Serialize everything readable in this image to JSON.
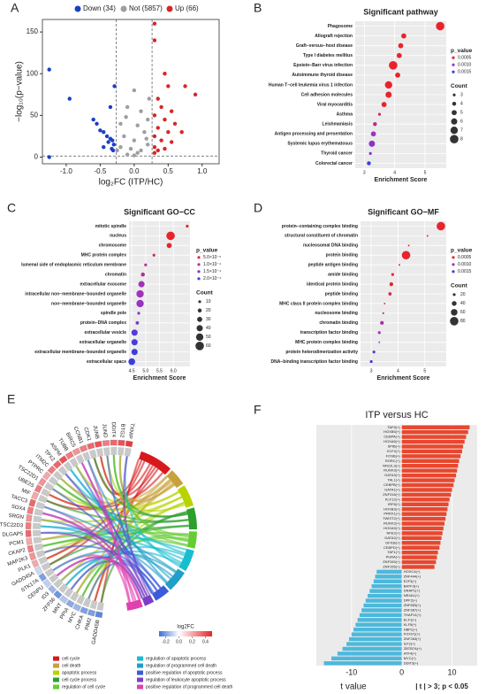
{
  "chart_data": [
    {
      "panel": "A",
      "type": "scatter",
      "xlabel": "log₂FC (ITP/HC)",
      "ylabel": "−log₁₀(p−value)",
      "xlim": [
        -1.35,
        1.25
      ],
      "ylim": [
        -8,
        165
      ],
      "xticks": [
        {
          "value": -1,
          "label": "-1.0"
        },
        {
          "value": -0.5,
          "label": "-0.5"
        },
        {
          "value": 0,
          "label": "0.0"
        },
        {
          "value": 0.5,
          "label": "0.5"
        },
        {
          "value": 1,
          "label": "1.0"
        }
      ],
      "yticks": [
        0,
        50,
        100,
        150
      ],
      "thresholds": {
        "x": [
          -0.263,
          0.263
        ],
        "y": 1.3
      },
      "series": [
        {
          "name": "Down (34)",
          "color": "#1b3fc4",
          "x": [
            -1.25,
            -0.95,
            -0.6,
            -0.55,
            -0.5,
            -0.45,
            -0.4,
            -0.35,
            -0.32,
            -0.38,
            -0.3,
            -0.45,
            -0.33,
            -0.31,
            -0.29,
            -0.35,
            -1.25
          ],
          "y": [
            105,
            70,
            45,
            40,
            32,
            30,
            25,
            22,
            20,
            18,
            15,
            12,
            10,
            8,
            85,
            60,
            0
          ]
        },
        {
          "name": "Not (5857)",
          "color": "#9e9e9e",
          "x": [
            -0.2,
            -0.1,
            0,
            0.1,
            0.2,
            -0.15,
            0.15,
            0,
            -0.05,
            0.05,
            0.2,
            -0.2,
            0.1,
            -0.1,
            0,
            0.22,
            -0.25,
            0.18,
            0.05,
            -0.12
          ],
          "y": [
            40,
            60,
            80,
            55,
            45,
            25,
            30,
            20,
            10,
            5,
            15,
            12,
            8,
            3,
            2,
            70,
            8,
            22,
            38,
            48
          ]
        },
        {
          "name": "Up (66)",
          "color": "#d62728",
          "x": [
            0.3,
            0.3,
            0.45,
            0.5,
            0.75,
            0.9,
            0.35,
            0.4,
            0.55,
            0.3,
            0.45,
            0.6,
            0.35,
            0.5,
            0.7,
            0.3,
            0.4,
            0.55,
            0.3,
            0.45,
            0.35,
            0.3
          ],
          "y": [
            160,
            140,
            100,
            85,
            85,
            75,
            70,
            60,
            55,
            50,
            45,
            40,
            35,
            30,
            30,
            25,
            20,
            18,
            12,
            10,
            8,
            5
          ]
        }
      ]
    },
    {
      "panel": "B",
      "type": "dot",
      "title": "Significant pathway",
      "xlabel": "Enrichment Score",
      "categories": [
        "Phagosome",
        "Allograft rejection",
        "Graft−versus−host disease",
        "Type I diabetes mellitus",
        "Epstein−Barr virus infection",
        "Autoimmune thyroid disease",
        "Human T−cell leukemia virus 1 infection",
        "Cell adhesion molecules",
        "Viral myocarditis",
        "Asthma",
        "Leishmaniasis",
        "Antigen processing and presentation",
        "Systemic lupus erythematosus",
        "Thyroid cancer",
        "Colorectal cancer"
      ],
      "values": [
        5.5,
        4.3,
        4.2,
        4.15,
        3.95,
        4.1,
        3.8,
        3.8,
        3.65,
        3.5,
        3.35,
        3.3,
        3.25,
        3.2,
        3.15
      ],
      "counts": [
        8,
        5,
        5,
        5,
        8,
        5,
        7,
        6,
        5,
        3,
        4,
        5,
        6,
        3,
        4
      ],
      "p_values": [
        5e-05,
        0.0002,
        0.0002,
        0.0002,
        0.0001,
        0.0003,
        0.0002,
        0.0003,
        0.0004,
        0.0006,
        0.0008,
        0.001,
        0.0011,
        0.0012,
        0.0015
      ],
      "xlim": [
        2.7,
        5.7
      ],
      "xticks": [
        3,
        4,
        5
      ],
      "color_title": "p_value",
      "color_legend": [
        {
          "value": 0.0005,
          "label": "0.0005"
        },
        {
          "value": 0.001,
          "label": "0.0010"
        },
        {
          "value": 0.0015,
          "label": "0.0015"
        }
      ],
      "size_title": "Count",
      "size_legend": [
        3,
        4,
        5,
        6,
        7,
        8
      ],
      "colors": [
        "#e8242a",
        "#9c33c4",
        "#3d3dde"
      ]
    },
    {
      "panel": "C",
      "type": "dot",
      "title": "Significant GO−CC",
      "xlabel": "Enrichment Score",
      "categories": [
        "mitotic spindle",
        "nucleus",
        "chromosome",
        "MHC protein complex",
        "lumenal side of endoplasmic reticulum membrane",
        "chromatin",
        "extracellular exosome",
        "intracellular non−membrane−bounded organelle",
        "non−membrane−bounded organelle",
        "spindle pole",
        "protein−DNA complex",
        "extracellular vesicle",
        "extracellular organelle",
        "extracellular membrane−bounded organelle",
        "extracellular space"
      ],
      "values": [
        6.5,
        5.9,
        5.85,
        5.3,
        5.0,
        4.9,
        4.85,
        4.8,
        4.8,
        4.75,
        4.7,
        4.6,
        4.6,
        4.6,
        4.5
      ],
      "counts": [
        10,
        60,
        30,
        10,
        10,
        20,
        40,
        50,
        50,
        10,
        15,
        40,
        40,
        40,
        45
      ],
      "p_values": [
        4e-05,
        3e-05,
        5e-05,
        8e-05,
        0.0001,
        0.0001,
        0.00012,
        0.00012,
        0.00013,
        0.00014,
        0.00015,
        0.00018,
        0.00019,
        0.0002,
        0.0002
      ],
      "xlim": [
        4.4,
        6.6
      ],
      "xticks": [
        4.5,
        {
          "value": 5,
          "label": "5.0"
        },
        5.5,
        {
          "value": 6,
          "label": "6.0"
        }
      ],
      "color_title": "p_value",
      "color_legend": [
        {
          "value": 5e-05,
          "label": "5.0×10⁻⁵"
        },
        {
          "value": 0.0001,
          "label": "1.0×10⁻⁴"
        },
        {
          "value": 0.00015,
          "label": "1.5×10⁻⁴"
        },
        {
          "value": 0.0002,
          "label": "2.0×10⁻⁴"
        }
      ],
      "size_title": "Count",
      "size_legend": [
        10,
        20,
        30,
        40,
        50,
        60
      ],
      "colors": [
        "#e8242a",
        "#9c33c4",
        "#3d3dde"
      ]
    },
    {
      "panel": "D",
      "type": "dot",
      "title": "Significant GO−MF",
      "xlabel": "Enrichment Score",
      "categories": [
        "protein−containing complex binding",
        "structural constituent of chromatin",
        "nucleosomal DNA binding",
        "protein binding",
        "peptide antigen binding",
        "amide binding",
        "identical protein binding",
        "peptide binding",
        "MHC class II protein complex binding",
        "nucleosome binding",
        "chromatin binding",
        "transcription factor binding",
        "MHC protein complex binding",
        "protein heterodimerization activity",
        "DNA−binding transcription factor binding"
      ],
      "values": [
        5.6,
        5.1,
        4.4,
        4.3,
        4.05,
        3.8,
        3.75,
        3.7,
        3.5,
        3.45,
        3.4,
        3.3,
        3.3,
        3.1,
        3.0
      ],
      "counts": [
        80,
        8,
        8,
        80,
        8,
        20,
        30,
        25,
        8,
        10,
        30,
        20,
        8,
        20,
        20
      ],
      "p_values": [
        0.0001,
        0.0002,
        0.0003,
        0.0002,
        0.0004,
        0.0005,
        0.0005,
        0.0006,
        0.0007,
        0.0008,
        0.0009,
        0.001,
        0.0011,
        0.0013,
        0.0015
      ],
      "xlim": [
        2.6,
        5.8
      ],
      "xticks": [
        3,
        4,
        5
      ],
      "color_title": "p_value",
      "color_legend": [
        {
          "value": 0.0005,
          "label": "0.0005"
        },
        {
          "value": 0.001,
          "label": "0.0010"
        },
        {
          "value": 0.0015,
          "label": "0.0015"
        }
      ],
      "size_title": "Count",
      "size_legend": [
        20,
        40,
        60,
        80
      ],
      "colors": [
        "#e8242a",
        "#9c33c4",
        "#3d3dde"
      ]
    },
    {
      "panel": "E",
      "type": "chord",
      "genes": [
        "GADD45B",
        "PIM2",
        "CHKA",
        "MYC",
        "PPIA",
        "MNT",
        "ZFP36",
        "ID3",
        "CENPU",
        "STK17A",
        "GADD45A",
        "PLK1",
        "MAP2K3",
        "CKAP2",
        "PCM1",
        "DLGAP5",
        "TSC22D3",
        "SRGN",
        "SOX4",
        "TACC3",
        "MIF",
        "UBE2S",
        "TSC22D1",
        "PTPRC",
        "ITM2C",
        "TPX2",
        "ASPM",
        "TUBB",
        "BIRC5",
        "CCNB1",
        "CDK1",
        "JUNB",
        "JUND",
        "DDIT4",
        "BTG2",
        "TXNIP"
      ],
      "log2fc": [
        -0.25,
        -0.2,
        -0.2,
        -0.15,
        -0.18,
        -0.12,
        -0.22,
        -0.15,
        -0.1,
        -0.2,
        -0.08,
        0.2,
        0.25,
        0.3,
        0.2,
        0.35,
        0.3,
        0.25,
        0.3,
        0.35,
        0.2,
        0.3,
        0.25,
        0.2,
        0.3,
        0.35,
        0.4,
        0.3,
        0.25,
        0.3,
        0.35,
        0.4,
        0.3,
        0.35,
        0.4,
        0.45
      ],
      "terms": [
        "cell cycle",
        "cell death",
        "apoptotic process",
        "cell cycle process",
        "regulation of cell cycle",
        "regulation of apoptotic process",
        "regulation of programmed cell death",
        "positive regulation of apoptotic process",
        "regulation of leukocyte apoptotic process",
        "positive regulation of programmed cell death"
      ],
      "term_colors": [
        "#d7191c",
        "#c8a13a",
        "#b8d400",
        "#2ca02c",
        "#66cc33",
        "#17becf",
        "#1f9fc9",
        "#3b5bdb",
        "#7b3fc4",
        "#e040b0"
      ],
      "colorbar_title": "log2FC",
      "clim": [
        -0.3,
        0.5
      ],
      "colorbar_ticks": [
        {
          "value": -0.2,
          "label": "-0.2"
        },
        {
          "value": 0,
          "label": "0.0"
        },
        {
          "value": 0.2,
          "label": "0.2"
        },
        {
          "value": 0.4,
          "label": "0.4"
        }
      ]
    },
    {
      "panel": "F",
      "type": "hbar",
      "title": "ITP versus HC",
      "xlabel": "t value",
      "annotation": "| t | > 3; p < 0.05",
      "categories": [
        "TAF6(+)",
        "HOXB5(+)",
        "CEBPA(+)",
        "HOXA5(+)",
        "SPIB(+)",
        "ELF4(+)",
        "FOSB(+)",
        "RORC(+)",
        "NFE2L3(+)",
        "RUNX3(+)",
        "GATA3(+)",
        "TAL1(+)",
        "CEBPB(+)",
        "GATA1(+)",
        "ZNF316(+)",
        "KLF12(+)",
        "IRF8(+)",
        "HOXB3(+)",
        "PRRX1(+)",
        "TWIST2(+)",
        "RUNX2(+)",
        "HOXA9(+)",
        "NFE2(+)",
        "GATA2(+)",
        "GFI1B(+)",
        "CEBPD(+)",
        "TAF1(+)",
        "PURA(+)",
        "ZNF345(+)",
        "ZNF155(+)",
        "HOXC4(+)",
        "ZNF444(+)",
        "E2F3(+)",
        "BATF3(+)",
        "DRAP1(+)",
        "NR4A1(+)",
        "DPF2(+)",
        "ZNF853(+)",
        "ZNF367(+)",
        "THAP11(+)",
        "ELF1(+)",
        "KLF5(+)",
        "HBP1(+)",
        "FOXO1(+)",
        "ZNF263(+)",
        "ILF2(+)",
        "ZBTB7A(+)",
        "ATF4(+)",
        "MYC(+)",
        "DDIT3(+)"
      ],
      "values": [
        13.5,
        13.2,
        12.8,
        12.5,
        12.2,
        12.0,
        11.7,
        11.4,
        11.2,
        11.0,
        10.8,
        10.5,
        10.3,
        10.0,
        9.8,
        9.5,
        9.3,
        9.1,
        8.9,
        8.7,
        8.5,
        8.3,
        8.1,
        7.9,
        7.7,
        7.5,
        7.2,
        7.0,
        6.8,
        6.5,
        -5.0,
        -5.3,
        -5.6,
        -6.0,
        -6.4,
        -6.8,
        -7.2,
        -7.6,
        -8.0,
        -8.4,
        -8.8,
        -9.2,
        -9.6,
        -10.0,
        -10.5,
        -11.0,
        -11.8,
        -12.8,
        -14.0,
        -15.5
      ],
      "xlim": [
        -17,
        15
      ],
      "xticks": [
        -10,
        0,
        10
      ],
      "colors": {
        "positive": "#e8472e",
        "negative": "#4db8dc"
      }
    }
  ]
}
